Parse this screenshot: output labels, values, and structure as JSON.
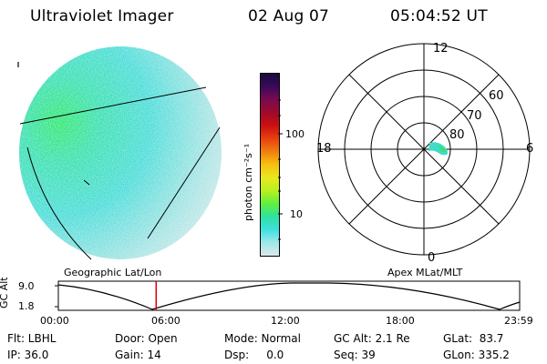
{
  "header": {
    "instrument": "Ultraviolet Imager",
    "date": "02 Aug 07",
    "time": "05:04:52 UT"
  },
  "colorbar": {
    "label": "photon cm⁻²s⁻¹",
    "ticks": [
      "100",
      "10"
    ],
    "colors": [
      "#1a0a3c",
      "#3a0a5a",
      "#7a0a50",
      "#a00a2a",
      "#cc1010",
      "#e84010",
      "#f08010",
      "#f8c010",
      "#e8e820",
      "#b8f020",
      "#60f040",
      "#30e0a0",
      "#40e0e0",
      "#a0e8e8",
      "#dde8e8"
    ]
  },
  "polar_plot": {
    "mlt_labels": [
      "12",
      "18",
      "6",
      "0"
    ],
    "lat_labels": [
      "60",
      "70",
      "80"
    ]
  },
  "timeline": {
    "axis_label": "GC Alt",
    "y_ticks": [
      "9.0",
      "1.8"
    ],
    "left_title": "Geographic Lat/Lon",
    "right_title": "Apex MLat/MLT",
    "x_ticks": [
      "00:00",
      "06:00",
      "12:00",
      "18:00",
      "23:59"
    ],
    "current_time_fraction": 0.212,
    "marker_color": "#e00000"
  },
  "info": {
    "filter": "Flt: LBHL",
    "ip": "IP: 36.0",
    "door": "Door: Open",
    "gain": "Gain: 14",
    "mode": "Mode: Normal",
    "dsp": "Dsp:     0.0",
    "gc_alt": "GC Alt: 2.1 Re",
    "seq": "Seq: 39",
    "glat": "GLat:  83.7",
    "glon": "GLon: 335.2"
  }
}
